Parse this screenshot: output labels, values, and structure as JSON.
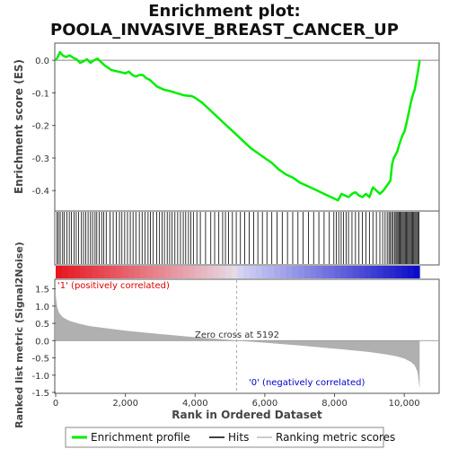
{
  "chart_data": {
    "type": "line",
    "title": "Enrichment plot:",
    "subtitle": "POOLA_INVASIVE_BREAST_CANCER_UP",
    "es_panel": {
      "ylabel": "Enrichment score (ES)",
      "ylim": [
        -0.46,
        0.05
      ],
      "yticks": [
        0.0,
        -0.1,
        -0.2,
        -0.3,
        -0.4
      ],
      "ytick_labels": [
        "0.0",
        "-0.1",
        "-0.2",
        "-0.3",
        "-0.4"
      ],
      "series": [
        {
          "name": "Enrichment profile",
          "color": "#00ee00",
          "x": [
            0,
            60,
            120,
            200,
            300,
            400,
            500,
            600,
            700,
            800,
            900,
            1000,
            1100,
            1200,
            1400,
            1600,
            1800,
            2000,
            2100,
            2200,
            2300,
            2400,
            2500,
            2600,
            2700,
            2800,
            2900,
            3000,
            3100,
            3300,
            3500,
            3700,
            3900,
            4000,
            4200,
            4400,
            4600,
            4800,
            5000,
            5200,
            5400,
            5600,
            5800,
            6000,
            6200,
            6400,
            6600,
            6800,
            7000,
            7200,
            7400,
            7600,
            7800,
            7900,
            8000,
            8100,
            8200,
            8300,
            8400,
            8500,
            8600,
            8700,
            8800,
            8900,
            9000,
            9100,
            9200,
            9300,
            9400,
            9500,
            9600,
            9650,
            9700,
            9750,
            9800,
            9850,
            9900,
            9950,
            10000,
            10050,
            10100,
            10150,
            10200,
            10250,
            10300,
            10350,
            10400,
            10440
          ],
          "y": [
            0.0,
            0.01,
            0.025,
            0.015,
            0.01,
            0.015,
            0.008,
            0.003,
            -0.008,
            -0.003,
            0.003,
            -0.008,
            0.0,
            0.005,
            -0.015,
            -0.03,
            -0.035,
            -0.04,
            -0.035,
            -0.045,
            -0.05,
            -0.045,
            -0.045,
            -0.055,
            -0.06,
            -0.07,
            -0.08,
            -0.085,
            -0.09,
            -0.095,
            -0.102,
            -0.108,
            -0.11,
            -0.115,
            -0.13,
            -0.15,
            -0.17,
            -0.19,
            -0.21,
            -0.23,
            -0.25,
            -0.27,
            -0.285,
            -0.3,
            -0.315,
            -0.335,
            -0.35,
            -0.36,
            -0.375,
            -0.385,
            -0.395,
            -0.405,
            -0.415,
            -0.42,
            -0.425,
            -0.43,
            -0.41,
            -0.415,
            -0.42,
            -0.41,
            -0.405,
            -0.415,
            -0.42,
            -0.41,
            -0.42,
            -0.39,
            -0.4,
            -0.41,
            -0.4,
            -0.385,
            -0.37,
            -0.32,
            -0.3,
            -0.29,
            -0.28,
            -0.26,
            -0.245,
            -0.23,
            -0.22,
            -0.2,
            -0.175,
            -0.15,
            -0.125,
            -0.105,
            -0.09,
            -0.06,
            -0.03,
            0.0
          ]
        }
      ]
    },
    "hits_panel": {
      "hit_positions": [
        40,
        80,
        130,
        200,
        250,
        320,
        390,
        450,
        530,
        590,
        660,
        740,
        800,
        860,
        930,
        1000,
        1060,
        1130,
        1180,
        1250,
        1320,
        1380,
        1450,
        1560,
        1650,
        1740,
        1830,
        1900,
        1980,
        2060,
        2140,
        2220,
        2300,
        2400,
        2480,
        2560,
        2650,
        2720,
        2800,
        2900,
        2980,
        3050,
        3120,
        3200,
        3270,
        3340,
        3420,
        3500,
        3580,
        3660,
        3730,
        3810,
        3880,
        3950,
        4050,
        4150,
        4300,
        4450,
        4560,
        4680,
        4790,
        4870,
        4960,
        5070,
        5180,
        5300,
        5420,
        5550,
        5680,
        5800,
        5930,
        6060,
        6200,
        6350,
        6500,
        6650,
        6800,
        6950,
        7100,
        7250,
        7400,
        7550,
        7700,
        7850,
        7980,
        8050,
        8120,
        8190,
        8260,
        8330,
        8400,
        8500,
        8600,
        8700,
        8800,
        8900,
        9000,
        9100,
        9200,
        9300,
        9380,
        9450,
        9510,
        9560,
        9600,
        9640,
        9680,
        9720,
        9760,
        9790,
        9820,
        9850,
        9880,
        9910,
        9940,
        9970,
        10000,
        10030,
        10060,
        10090,
        10120,
        10150,
        10180,
        10210,
        10240,
        10270,
        10300,
        10330,
        10360,
        10390,
        10420
      ]
    },
    "metric_panel": {
      "ylabel": "Ranked list metric (Signal2Noise)",
      "ylim": [
        -1.5,
        1.75
      ],
      "yticks": [
        1.5,
        1.0,
        0.5,
        0.0,
        -0.5,
        -1.0,
        -1.5
      ],
      "ytick_labels": [
        "1.5",
        "1.0",
        "0.5",
        "0.0",
        "-0.5",
        "-1.0",
        "-1.5"
      ],
      "x": [
        0,
        20,
        50,
        100,
        200,
        400,
        700,
        1000,
        1500,
        2000,
        3000,
        4000,
        5000,
        5192,
        6000,
        7000,
        8000,
        9000,
        9500,
        9800,
        10000,
        10200,
        10300,
        10380,
        10440
      ],
      "y": [
        1.35,
        1.15,
        0.95,
        0.8,
        0.68,
        0.57,
        0.48,
        0.42,
        0.35,
        0.29,
        0.19,
        0.1,
        0.02,
        0.0,
        -0.06,
        -0.14,
        -0.23,
        -0.33,
        -0.4,
        -0.46,
        -0.52,
        -0.62,
        -0.72,
        -0.9,
        -1.4
      ],
      "positive_label": "'1' (positively correlated)",
      "negative_label": "'0' (negatively correlated)",
      "zero_cross_label": "Zero cross at 5192",
      "zero_cross": 5192
    },
    "xaxis": {
      "xlabel": "Rank in Ordered Dataset",
      "xlim": [
        0,
        11000
      ],
      "xticks": [
        0,
        2000,
        4000,
        6000,
        8000,
        10000
      ],
      "xtick_labels": [
        "0",
        "2,000",
        "4,000",
        "6,000",
        "8,000",
        "10,000"
      ]
    },
    "total": 10440,
    "legend": {
      "placement": "bottom",
      "items": [
        {
          "label": "Enrichment profile",
          "color": "#00ee00"
        },
        {
          "label": "Hits",
          "color": "#000000"
        },
        {
          "label": "Ranking metric scores",
          "color": "#bbbbbb"
        }
      ]
    },
    "colors": {
      "profile": "#00ee00",
      "positive_text": "#dd0000",
      "negative_text": "#0000cc",
      "metric_fill": "#b0b0b0",
      "zero_line": "#aaaaaa"
    }
  }
}
